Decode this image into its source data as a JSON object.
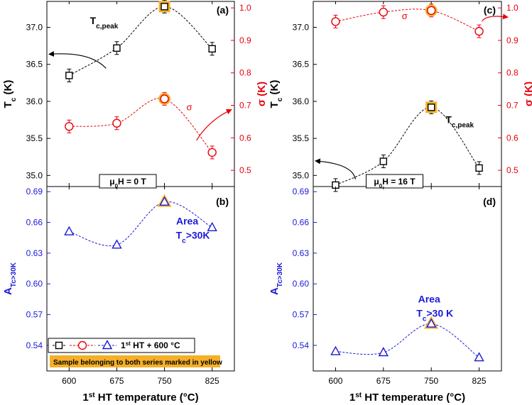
{
  "colors": {
    "tc": "#000000",
    "sigma": "#e8000b",
    "area": "#1a1ad6",
    "highlight": "#f5b027",
    "axis": "#000000"
  },
  "chart_data": [
    {
      "panel": "a",
      "type": "scatter",
      "label": "(a)",
      "field_label_main": "μ",
      "field_label_sub": "0",
      "field_label_tail": "H = 0 T",
      "x": [
        600,
        675,
        750,
        825
      ],
      "xlim": [
        565,
        860
      ],
      "xticks": [
        "600",
        "675",
        "750",
        "825"
      ],
      "xlabel_main": "1",
      "xlabel_sup": "st",
      "xlabel_tail": " HT temperature (°C)",
      "left_axis": {
        "label_main": "T",
        "label_sub": "c",
        "label_tail": " (K)",
        "ylim": [
          34.85,
          37.35
        ],
        "ticks": [
          "35.0",
          "35.5",
          "36.0",
          "36.5",
          "37.0"
        ]
      },
      "right_axis": {
        "label": "σ (K)",
        "ylim": [
          0.45,
          1.02
        ],
        "ticks": [
          "0.5",
          "0.6",
          "0.7",
          "0.8",
          "0.9",
          "1.0"
        ]
      },
      "series": [
        {
          "name": "Tc,peak",
          "axis": "left",
          "values": [
            36.35,
            36.72,
            37.28,
            36.71
          ],
          "marker": "square",
          "highlight": 750
        },
        {
          "name": "σ",
          "axis": "right",
          "values": [
            0.635,
            0.645,
            0.72,
            0.555
          ],
          "marker": "circle",
          "highlight": 750
        }
      ],
      "annotations": {
        "tc_main": "T",
        "tc_sub": "c,peak",
        "sigma": "σ"
      }
    },
    {
      "panel": "b",
      "type": "scatter",
      "label": "(b)",
      "x": [
        600,
        675,
        750,
        825
      ],
      "xlim": [
        565,
        860
      ],
      "xticks": [
        "600",
        "675",
        "750",
        "825"
      ],
      "xlabel_main": "1",
      "xlabel_sup": "st",
      "xlabel_tail": " HT temperature (°C)",
      "left_axis": {
        "label_main": "A",
        "label_sub": "Tc>30K",
        "ylim": [
          0.515,
          0.695
        ],
        "ticks": [
          "0.54",
          "0.57",
          "0.60",
          "0.63",
          "0.66",
          "0.69"
        ]
      },
      "series": [
        {
          "name": "Area Tc>30K",
          "axis": "left",
          "values": [
            0.651,
            0.638,
            0.68,
            0.655
          ],
          "marker": "triangle",
          "highlight": 750
        }
      ],
      "annotations": {
        "area_line1": "Area",
        "area_main": "T",
        "area_sub": "c",
        "area_tail": ">30K"
      },
      "legend": {
        "label_main": "1",
        "label_sup": "st",
        "label_tail": " HT + 600 °C",
        "position": "bottom-left",
        "note": "Sample belonging to both series marked in yellow"
      }
    },
    {
      "panel": "c",
      "type": "scatter",
      "label": "(c)",
      "field_label_main": "μ",
      "field_label_sub": "0",
      "field_label_tail": "H = 16 T",
      "x": [
        600,
        675,
        750,
        825
      ],
      "xlim": [
        565,
        860
      ],
      "xticks": [
        "600",
        "675",
        "750",
        "825"
      ],
      "xlabel_main": "1",
      "xlabel_sup": "st",
      "xlabel_tail": " HT temperature (°C)",
      "left_axis": {
        "label_main": "T",
        "label_sub": "c",
        "label_tail": " (K)",
        "ylim": [
          34.85,
          37.35
        ],
        "ticks": [
          "35.0",
          "35.5",
          "36.0",
          "36.5",
          "37.0"
        ]
      },
      "right_axis": {
        "label": "σ (K)",
        "ylim": [
          0.45,
          1.02
        ],
        "ticks": [
          "0.5",
          "0.6",
          "0.7",
          "0.8",
          "0.9",
          "1.0"
        ]
      },
      "series": [
        {
          "name": "Tc,peak",
          "axis": "left",
          "values": [
            34.87,
            35.19,
            35.92,
            35.1
          ],
          "marker": "square",
          "highlight": 750
        },
        {
          "name": "σ",
          "axis": "right",
          "values": [
            0.958,
            0.987,
            0.992,
            0.928
          ],
          "marker": "circle",
          "highlight": 750
        }
      ],
      "annotations": {
        "tc_main": "T",
        "tc_sub": "c,peak",
        "sigma": "σ"
      }
    },
    {
      "panel": "d",
      "type": "scatter",
      "label": "(d)",
      "x": [
        600,
        675,
        750,
        825
      ],
      "xlim": [
        565,
        860
      ],
      "xticks": [
        "600",
        "675",
        "750",
        "825"
      ],
      "xlabel_main": "1",
      "xlabel_sup": "st",
      "xlabel_tail": " HT temperature (°C)",
      "left_axis": {
        "label_main": "A",
        "label_sub": "Tc>30K",
        "ylim": [
          0.515,
          0.695
        ],
        "ticks": [
          "0.54",
          "0.57",
          "0.60",
          "0.63",
          "0.66",
          "0.69"
        ]
      },
      "series": [
        {
          "name": "Area Tc>30 K",
          "axis": "left",
          "values": [
            0.534,
            0.533,
            0.561,
            0.528
          ],
          "marker": "triangle",
          "highlight": 750
        }
      ],
      "annotations": {
        "area_line1": "Area",
        "area_main": "T",
        "area_sub": "c",
        "area_tail": ">30 K"
      }
    }
  ]
}
